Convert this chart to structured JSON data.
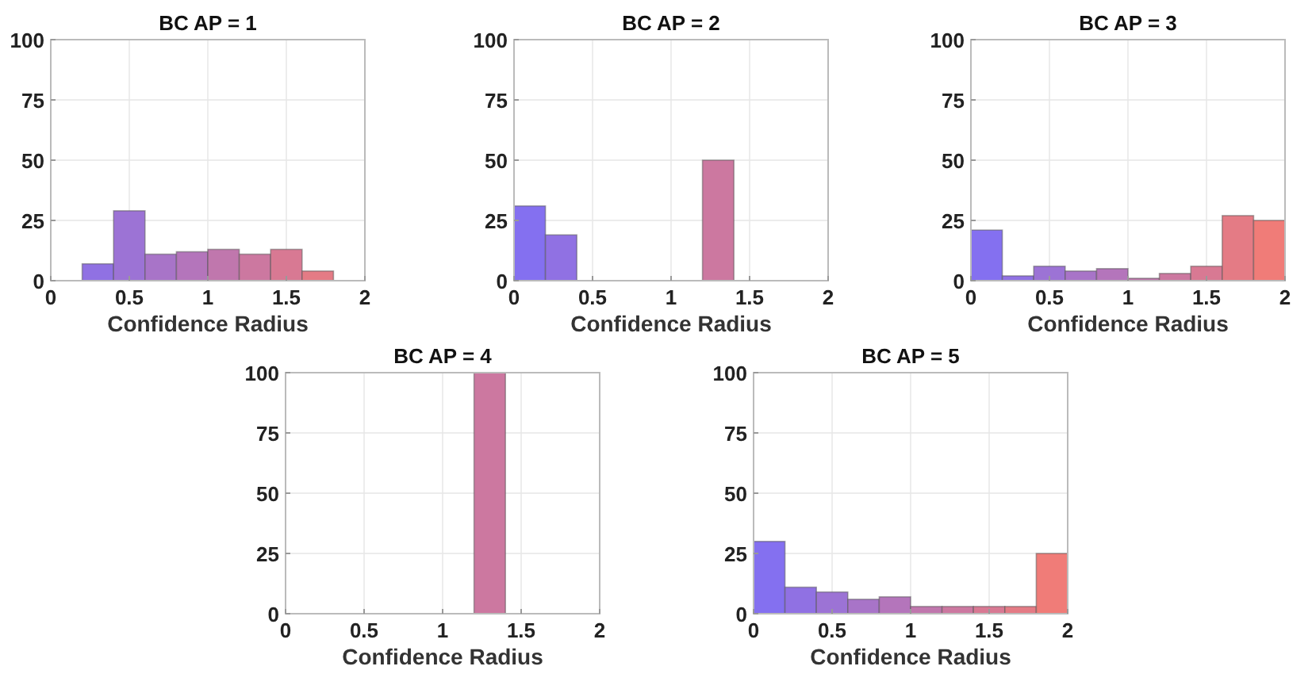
{
  "chart_data": [
    {
      "type": "histogram",
      "title": "BC AP = 1",
      "xlabel": "Confidence Radius",
      "bins": [
        0,
        0.2,
        0.4,
        0.6,
        0.8,
        1,
        1.2,
        1.4,
        1.6,
        1.8,
        2
      ],
      "values": [
        0,
        7,
        29,
        11,
        12,
        13,
        11,
        13,
        4,
        0
      ],
      "colors": [
        "#8470f0",
        "#9071e3",
        "#9c73d5",
        "#a874c8",
        "#b475bb",
        "#c077ad",
        "#cc78a0",
        "#d87993",
        "#e47b85",
        "#f07c78"
      ],
      "xlim": [
        0,
        2
      ],
      "xticks": [
        0,
        0.5,
        1,
        1.5,
        2
      ],
      "ylim": [
        0,
        100
      ],
      "yticks": [
        0,
        25,
        50,
        75,
        100
      ],
      "grid": true
    },
    {
      "type": "histogram",
      "title": "BC AP = 2",
      "xlabel": "Confidence Radius",
      "bins": [
        0,
        0.2,
        0.4,
        0.6,
        0.8,
        1,
        1.2,
        1.4,
        1.6,
        1.8,
        2
      ],
      "values": [
        31,
        19,
        0,
        0,
        0,
        0,
        50,
        0,
        0,
        0
      ],
      "colors": [
        "#8470f0",
        "#9071e3",
        "#9c73d5",
        "#a874c8",
        "#b475bb",
        "#c077ad",
        "#cc78a0",
        "#d87993",
        "#e47b85",
        "#f07c78"
      ],
      "xlim": [
        0,
        2
      ],
      "xticks": [
        0,
        0.5,
        1,
        1.5,
        2
      ],
      "ylim": [
        0,
        100
      ],
      "yticks": [
        0,
        25,
        50,
        75,
        100
      ],
      "grid": true
    },
    {
      "type": "histogram",
      "title": "BC AP = 3",
      "xlabel": "Confidence Radius",
      "bins": [
        0,
        0.2,
        0.4,
        0.6,
        0.8,
        1,
        1.2,
        1.4,
        1.6,
        1.8,
        2
      ],
      "values": [
        21,
        2,
        6,
        4,
        5,
        1,
        3,
        6,
        27,
        25
      ],
      "colors": [
        "#8470f0",
        "#9071e3",
        "#9c73d5",
        "#a874c8",
        "#b475bb",
        "#c077ad",
        "#cc78a0",
        "#d87993",
        "#e47b85",
        "#f07c78"
      ],
      "xlim": [
        0,
        2
      ],
      "xticks": [
        0,
        0.5,
        1,
        1.5,
        2
      ],
      "ylim": [
        0,
        100
      ],
      "yticks": [
        0,
        25,
        50,
        75,
        100
      ],
      "grid": true
    },
    {
      "type": "histogram",
      "title": "BC AP = 4",
      "xlabel": "Confidence Radius",
      "bins": [
        0,
        0.2,
        0.4,
        0.6,
        0.8,
        1,
        1.2,
        1.4,
        1.6,
        1.8,
        2
      ],
      "values": [
        0,
        0,
        0,
        0,
        0,
        0,
        100,
        0,
        0,
        0
      ],
      "colors": [
        "#8470f0",
        "#9071e3",
        "#9c73d5",
        "#a874c8",
        "#b475bb",
        "#c077ad",
        "#cc78a0",
        "#d87993",
        "#e47b85",
        "#f07c78"
      ],
      "xlim": [
        0,
        2
      ],
      "xticks": [
        0,
        0.5,
        1,
        1.5,
        2
      ],
      "ylim": [
        0,
        100
      ],
      "yticks": [
        0,
        25,
        50,
        75,
        100
      ],
      "grid": true
    },
    {
      "type": "histogram",
      "title": "BC AP = 5",
      "xlabel": "Confidence Radius",
      "bins": [
        0,
        0.2,
        0.4,
        0.6,
        0.8,
        1,
        1.2,
        1.4,
        1.6,
        1.8,
        2
      ],
      "values": [
        30,
        11,
        9,
        6,
        7,
        3,
        3,
        3,
        3,
        25
      ],
      "colors": [
        "#8470f0",
        "#9071e3",
        "#9c73d5",
        "#a874c8",
        "#b475bb",
        "#c077ad",
        "#cc78a0",
        "#d87993",
        "#e47b85",
        "#f07c78"
      ],
      "xlim": [
        0,
        2
      ],
      "xticks": [
        0,
        0.5,
        1,
        1.5,
        2
      ],
      "ylim": [
        0,
        100
      ],
      "yticks": [
        0,
        25,
        50,
        75,
        100
      ],
      "grid": true
    }
  ]
}
